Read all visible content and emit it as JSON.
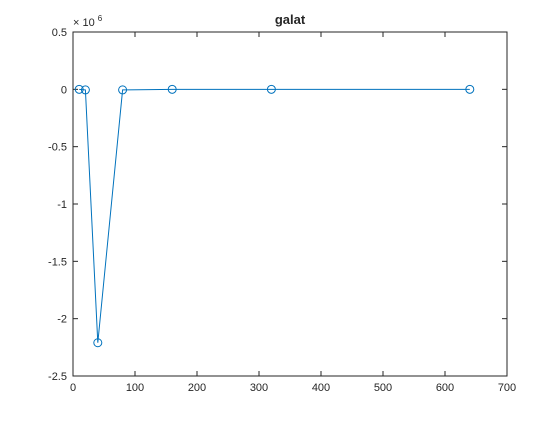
{
  "chart_data": {
    "type": "line",
    "title": "galat",
    "xlabel": "",
    "ylabel": "",
    "xlim": [
      0,
      700
    ],
    "ylim": [
      -2.5,
      0.5
    ],
    "y_scale_multiplier": {
      "base": "× 10",
      "exponent": "6"
    },
    "x_ticks": [
      0,
      100,
      200,
      300,
      400,
      500,
      600,
      700
    ],
    "x_tick_labels": [
      "0",
      "100",
      "200",
      "300",
      "400",
      "500",
      "600",
      "700"
    ],
    "y_ticks": [
      0.5,
      0,
      -0.5,
      -1,
      -1.5,
      -2,
      -2.5
    ],
    "y_tick_labels": [
      "0.5",
      "0",
      "-0.5",
      "-1",
      "-1.5",
      "-2",
      "-2.5"
    ],
    "grid": false,
    "series": [
      {
        "x": [
          10,
          20,
          40,
          80,
          160,
          320,
          640
        ],
        "y": [
          0.0,
          -0.005,
          -2.21,
          -0.005,
          0.0,
          0.0,
          0.0
        ]
      }
    ],
    "colors": {
      "line": "#0072BD",
      "axes": "#262626",
      "background": "#ffffff"
    }
  }
}
